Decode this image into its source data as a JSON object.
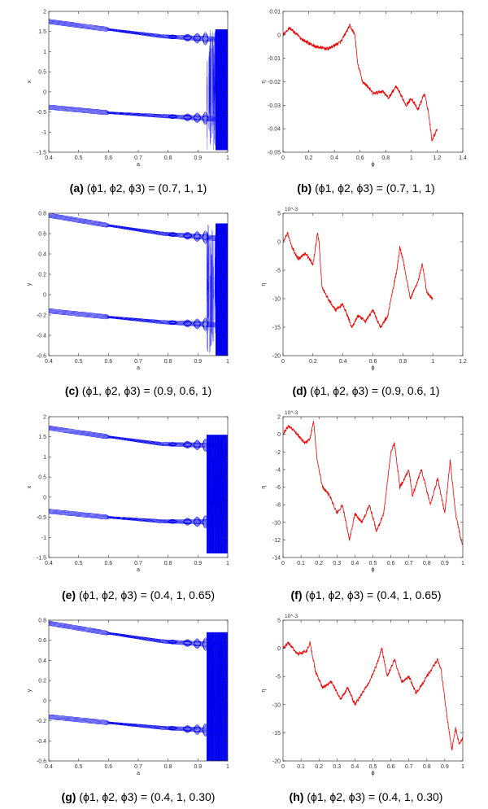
{
  "colors": {
    "bifurcation": "#0000ee",
    "eta": "#ee0000",
    "axis": "#333333"
  },
  "chart_data": [
    {
      "panel": "a",
      "type": "scatter",
      "caption": {
        "label": "(a)",
        "text": "(ϕ1, ϕ2, ϕ3) = (0.7, 1, 1)"
      },
      "xlabel": "a",
      "ylabel": "x",
      "xlim": [
        0.4,
        1
      ],
      "ylim": [
        -1.5,
        2
      ],
      "xticks": [
        "0.4",
        "0.5",
        "0.6",
        "0.7",
        "0.8",
        "0.9",
        "1"
      ],
      "yticks": [
        "-1.5",
        "-1",
        "-0.5",
        "0",
        "0.5",
        "1",
        "1.5",
        "2"
      ],
      "upper_branch": [
        [
          0.4,
          1.75
        ],
        [
          0.6,
          1.55
        ],
        [
          0.78,
          1.38
        ],
        [
          0.98,
          1.3
        ]
      ],
      "lower_branch": [
        [
          0.4,
          -0.38
        ],
        [
          0.6,
          -0.52
        ],
        [
          0.78,
          -0.6
        ],
        [
          0.98,
          -0.68
        ]
      ],
      "chaos_onset": 0.8,
      "dense_band": [
        0.96,
        1.0
      ],
      "chaos_range": [
        -1.45,
        1.55
      ]
    },
    {
      "panel": "b",
      "type": "line",
      "caption": {
        "label": "(b)",
        "text": "(ϕ1, ϕ2, ϕ3) = (0.7, 1, 1)"
      },
      "xlabel": "ϕ",
      "ylabel": "η",
      "xlim": [
        0,
        1.4
      ],
      "ylim": [
        -0.05,
        0.01
      ],
      "xticks": [
        "0",
        "0.2",
        "0.4",
        "0.6",
        "0.8",
        "1",
        "1.2",
        "1.4"
      ],
      "yticks": [
        "-0.05",
        "-0.04",
        "-0.03",
        "-0.02",
        "-0.01",
        "0",
        "0.01"
      ],
      "x_end": 1.2,
      "series": [
        {
          "knots": [
            [
              0,
              0
            ],
            [
              0.05,
              0.003
            ],
            [
              0.15,
              -0.002
            ],
            [
              0.25,
              -0.005
            ],
            [
              0.35,
              -0.006
            ],
            [
              0.45,
              -0.003
            ],
            [
              0.5,
              0.002
            ],
            [
              0.52,
              0.004
            ],
            [
              0.56,
              0.0
            ],
            [
              0.58,
              -0.012
            ],
            [
              0.62,
              -0.02
            ],
            [
              0.66,
              -0.022
            ],
            [
              0.7,
              -0.025
            ],
            [
              0.78,
              -0.024
            ],
            [
              0.82,
              -0.027
            ],
            [
              0.88,
              -0.022
            ],
            [
              0.92,
              -0.026
            ],
            [
              0.96,
              -0.03
            ],
            [
              1.0,
              -0.027
            ],
            [
              1.05,
              -0.032
            ],
            [
              1.1,
              -0.025
            ],
            [
              1.13,
              -0.032
            ],
            [
              1.16,
              -0.045
            ],
            [
              1.2,
              -0.04
            ]
          ]
        }
      ]
    },
    {
      "panel": "c",
      "type": "scatter",
      "caption": {
        "label": "(c)",
        "text": "(ϕ1, ϕ2, ϕ3) = (0.9, 0.6, 1)"
      },
      "xlabel": "a",
      "ylabel": "y",
      "xlim": [
        0.4,
        1
      ],
      "ylim": [
        -0.6,
        0.8
      ],
      "xticks": [
        "0.4",
        "0.5",
        "0.6",
        "0.7",
        "0.8",
        "0.9",
        "1"
      ],
      "yticks": [
        "-0.6",
        "-0.4",
        "-0.2",
        "0",
        "0.2",
        "0.4",
        "0.6",
        "0.8"
      ],
      "upper_branch": [
        [
          0.4,
          0.78
        ],
        [
          0.6,
          0.68
        ],
        [
          0.78,
          0.6
        ],
        [
          0.98,
          0.55
        ]
      ],
      "lower_branch": [
        [
          0.4,
          -0.16
        ],
        [
          0.6,
          -0.22
        ],
        [
          0.78,
          -0.27
        ],
        [
          0.98,
          -0.3
        ]
      ],
      "chaos_onset": 0.8,
      "dense_band": [
        0.96,
        1.0
      ],
      "chaos_range": [
        -0.6,
        0.7
      ]
    },
    {
      "panel": "d",
      "type": "line",
      "caption": {
        "label": "(d)",
        "text": "(ϕ1, ϕ2, ϕ3) = (0.9, 0.6, 1)"
      },
      "xlabel": "ϕ",
      "ylabel": "η",
      "multiplier": "10^-3",
      "xlim": [
        0,
        1.2
      ],
      "ylim": [
        -20,
        5
      ],
      "xticks": [
        "0",
        "0.2",
        "0.4",
        "0.6",
        "0.8",
        "1",
        "1.2"
      ],
      "yticks": [
        "-20",
        "-15",
        "-10",
        "-5",
        "0",
        "5"
      ],
      "x_end": 1.0,
      "series": [
        {
          "knots": [
            [
              0,
              0
            ],
            [
              0.03,
              1.5
            ],
            [
              0.06,
              -1
            ],
            [
              0.1,
              -3
            ],
            [
              0.15,
              -2
            ],
            [
              0.2,
              -4
            ],
            [
              0.23,
              1.5
            ],
            [
              0.24,
              0
            ],
            [
              0.26,
              -8
            ],
            [
              0.3,
              -10
            ],
            [
              0.35,
              -12
            ],
            [
              0.4,
              -11
            ],
            [
              0.46,
              -15
            ],
            [
              0.5,
              -13
            ],
            [
              0.55,
              -14
            ],
            [
              0.6,
              -12
            ],
            [
              0.65,
              -15
            ],
            [
              0.7,
              -13
            ],
            [
              0.72,
              -10
            ],
            [
              0.76,
              -5
            ],
            [
              0.78,
              -1
            ],
            [
              0.8,
              -3
            ],
            [
              0.85,
              -10
            ],
            [
              0.9,
              -7
            ],
            [
              0.93,
              -4
            ],
            [
              0.96,
              -9
            ],
            [
              1.0,
              -10
            ]
          ]
        }
      ]
    },
    {
      "panel": "e",
      "type": "scatter",
      "caption": {
        "label": "(e)",
        "text": "(ϕ1, ϕ2, ϕ3) = (0.4, 1, 0.65)"
      },
      "xlabel": "a",
      "ylabel": "x",
      "xlim": [
        0.4,
        1
      ],
      "ylim": [
        -1.5,
        2
      ],
      "xticks": [
        "0.4",
        "0.5",
        "0.6",
        "0.7",
        "0.8",
        "0.9",
        "1"
      ],
      "yticks": [
        "-1.5",
        "-1",
        "-0.5",
        "0",
        "0.5",
        "1",
        "1.5",
        "2"
      ],
      "upper_branch": [
        [
          0.4,
          1.72
        ],
        [
          0.6,
          1.5
        ],
        [
          0.78,
          1.32
        ],
        [
          0.98,
          1.28
        ]
      ],
      "lower_branch": [
        [
          0.4,
          -0.35
        ],
        [
          0.6,
          -0.5
        ],
        [
          0.78,
          -0.6
        ],
        [
          0.98,
          -0.62
        ]
      ],
      "chaos_onset": 0.8,
      "dense_band": [
        0.93,
        1.0
      ],
      "chaos_range": [
        -1.4,
        1.55
      ]
    },
    {
      "panel": "f",
      "type": "line",
      "caption": {
        "label": "(f)",
        "text": "(ϕ1, ϕ2, ϕ3) = (0.4, 1, 0.65)"
      },
      "xlabel": "ϕ",
      "ylabel": "η",
      "multiplier": "10^-3",
      "xlim": [
        0,
        1
      ],
      "ylim": [
        -14,
        2
      ],
      "xticks": [
        "0",
        "0.1",
        "0.2",
        "0.3",
        "0.4",
        "0.5",
        "0.6",
        "0.7",
        "0.8",
        "0.9",
        "1"
      ],
      "yticks": [
        "-14",
        "-12",
        "-10",
        "-8",
        "-6",
        "-4",
        "-2",
        "0",
        "2"
      ],
      "x_end": 1.0,
      "series": [
        {
          "knots": [
            [
              0,
              0
            ],
            [
              0.03,
              1
            ],
            [
              0.08,
              0
            ],
            [
              0.12,
              -1
            ],
            [
              0.15,
              -0.5
            ],
            [
              0.17,
              1.5
            ],
            [
              0.19,
              -3
            ],
            [
              0.22,
              -6
            ],
            [
              0.26,
              -7
            ],
            [
              0.3,
              -9
            ],
            [
              0.33,
              -8
            ],
            [
              0.37,
              -12
            ],
            [
              0.4,
              -9
            ],
            [
              0.44,
              -10
            ],
            [
              0.48,
              -8
            ],
            [
              0.52,
              -11
            ],
            [
              0.56,
              -9
            ],
            [
              0.6,
              -2
            ],
            [
              0.62,
              -1
            ],
            [
              0.65,
              -6
            ],
            [
              0.7,
              -4
            ],
            [
              0.72,
              -7
            ],
            [
              0.77,
              -4
            ],
            [
              0.82,
              -8
            ],
            [
              0.86,
              -5
            ],
            [
              0.9,
              -9
            ],
            [
              0.93,
              -3
            ],
            [
              0.96,
              -9
            ],
            [
              0.99,
              -12
            ],
            [
              1.0,
              -12.5
            ]
          ]
        }
      ]
    },
    {
      "panel": "g",
      "type": "scatter",
      "caption": {
        "label": "(g)",
        "text": "(ϕ1, ϕ2, ϕ3) = (0.4, 1, 0.30)"
      },
      "xlabel": "a",
      "ylabel": "y",
      "xlim": [
        0.4,
        1
      ],
      "ylim": [
        -0.6,
        0.8
      ],
      "xticks": [
        "0.4",
        "0.5",
        "0.6",
        "0.7",
        "0.8",
        "0.9",
        "1"
      ],
      "yticks": [
        "-0.6",
        "-0.4",
        "-0.2",
        "0",
        "0.2",
        "0.4",
        "0.6",
        "0.8"
      ],
      "upper_branch": [
        [
          0.4,
          0.77
        ],
        [
          0.6,
          0.67
        ],
        [
          0.78,
          0.59
        ],
        [
          0.98,
          0.55
        ]
      ],
      "lower_branch": [
        [
          0.4,
          -0.16
        ],
        [
          0.6,
          -0.22
        ],
        [
          0.78,
          -0.27
        ],
        [
          0.98,
          -0.3
        ]
      ],
      "chaos_onset": 0.8,
      "dense_band": [
        0.93,
        1.0
      ],
      "chaos_range": [
        -0.6,
        0.68
      ]
    },
    {
      "panel": "h",
      "type": "line",
      "caption": {
        "label": "(h)",
        "text": "(ϕ1, ϕ2, ϕ3) = (0.4, 1, 0.30)"
      },
      "xlabel": "ϕ",
      "ylabel": "η",
      "multiplier": "10^-3",
      "xlim": [
        0,
        1
      ],
      "ylim": [
        -20,
        5
      ],
      "xticks": [
        "0",
        "0.1",
        "0.2",
        "0.3",
        "0.4",
        "0.5",
        "0.6",
        "0.7",
        "0.8",
        "0.9",
        "1"
      ],
      "yticks": [
        "-20",
        "-15",
        "-10",
        "-5",
        "0",
        "5"
      ],
      "x_end": 1.0,
      "series": [
        {
          "knots": [
            [
              0,
              0
            ],
            [
              0.03,
              1
            ],
            [
              0.08,
              -1
            ],
            [
              0.13,
              -0.5
            ],
            [
              0.15,
              1
            ],
            [
              0.18,
              -4
            ],
            [
              0.22,
              -7
            ],
            [
              0.27,
              -6
            ],
            [
              0.32,
              -9
            ],
            [
              0.36,
              -7
            ],
            [
              0.4,
              -10
            ],
            [
              0.44,
              -8
            ],
            [
              0.48,
              -6
            ],
            [
              0.52,
              -3
            ],
            [
              0.55,
              0
            ],
            [
              0.58,
              -5
            ],
            [
              0.62,
              -2
            ],
            [
              0.66,
              -6
            ],
            [
              0.7,
              -5
            ],
            [
              0.74,
              -8
            ],
            [
              0.78,
              -6
            ],
            [
              0.82,
              -4
            ],
            [
              0.86,
              -2
            ],
            [
              0.88,
              -4
            ],
            [
              0.9,
              -9
            ],
            [
              0.92,
              -14
            ],
            [
              0.94,
              -18
            ],
            [
              0.96,
              -14
            ],
            [
              0.98,
              -17
            ],
            [
              1.0,
              -16
            ]
          ]
        }
      ]
    }
  ]
}
